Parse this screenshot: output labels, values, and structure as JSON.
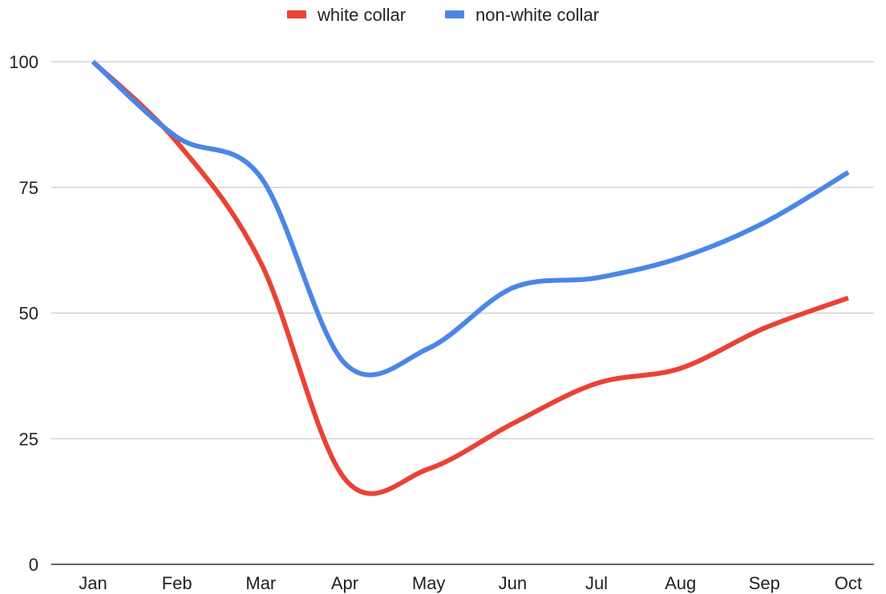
{
  "chart_data": {
    "type": "line",
    "title": "",
    "xlabel": "",
    "ylabel": "",
    "categories": [
      "Jan",
      "Feb",
      "Mar",
      "Apr",
      "May",
      "Jun",
      "Jul",
      "Aug",
      "Sep",
      "Oct"
    ],
    "ylim": [
      0,
      100
    ],
    "yticks": [
      "0",
      "25",
      "50",
      "75",
      "100"
    ],
    "grid": true,
    "legend_position": "top-center",
    "series": [
      {
        "name": "white collar",
        "color": "#e94335",
        "values": [
          100,
          84,
          60,
          17,
          19,
          28,
          36,
          39,
          47,
          53
        ]
      },
      {
        "name": "non-white collar",
        "color": "#4a86e8",
        "values": [
          100,
          85,
          77,
          40,
          43,
          55,
          57,
          61,
          68,
          78
        ]
      }
    ]
  }
}
